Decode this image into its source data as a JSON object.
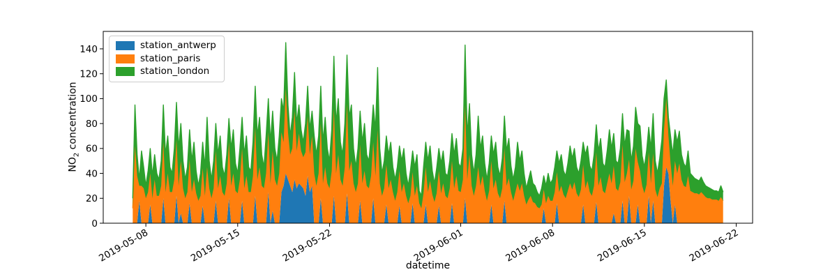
{
  "figure": {
    "kind": "matplotlib area plot",
    "background": "#ffffff"
  },
  "axes": {
    "xlabel": "datetime",
    "ylabel": "NO2 concentration",
    "ylabel_prefix": "NO",
    "ylabel_sub": "2",
    "ylabel_suffix": " concentration"
  },
  "chart_data": {
    "type": "area",
    "stacked": true,
    "title": "",
    "xlabel": "datetime",
    "ylabel": "NO2 concentration",
    "legend_position": "upper left",
    "grid": false,
    "x_start": "2019-05-07 00:00",
    "x_step_hours": 4,
    "xlim": [
      "2019-05-04 18:00",
      "2019-06-23 06:00"
    ],
    "ylim": [
      0,
      154
    ],
    "x_ticks": [
      "2019-05-08",
      "2019-05-15",
      "2019-05-22",
      "2019-06-01",
      "2019-06-08",
      "2019-06-15",
      "2019-06-22"
    ],
    "y_ticks": [
      0,
      20,
      40,
      60,
      80,
      100,
      120,
      140
    ],
    "series": [
      {
        "name": "station_antwerp",
        "color": "#1f77b4",
        "values": [
          0,
          0,
          0,
          18,
          0,
          0,
          0,
          0,
          15,
          0,
          0,
          0,
          0,
          0,
          20,
          0,
          0,
          0,
          0,
          0,
          22,
          0,
          8,
          0,
          0,
          0,
          16,
          0,
          0,
          0,
          0,
          0,
          14,
          0,
          0,
          0,
          0,
          0,
          18,
          0,
          0,
          0,
          0,
          0,
          20,
          0,
          0,
          0,
          0,
          0,
          18,
          0,
          0,
          0,
          0,
          0,
          22,
          0,
          0,
          0,
          0,
          0,
          25,
          0,
          10,
          0,
          0,
          0,
          25,
          30,
          40,
          35,
          30,
          25,
          35,
          28,
          32,
          30,
          28,
          22,
          38,
          25,
          30,
          0,
          0,
          0,
          20,
          0,
          0,
          0,
          0,
          0,
          22,
          0,
          0,
          0,
          0,
          0,
          24,
          0,
          0,
          0,
          0,
          0,
          18,
          0,
          0,
          0,
          0,
          0,
          20,
          0,
          0,
          0,
          0,
          0,
          15,
          0,
          0,
          0,
          0,
          0,
          14,
          0,
          0,
          0,
          0,
          0,
          16,
          0,
          0,
          0,
          0,
          0,
          15,
          0,
          0,
          0,
          0,
          0,
          14,
          0,
          0,
          0,
          0,
          0,
          16,
          0,
          0,
          0,
          0,
          0,
          20,
          0,
          0,
          0,
          0,
          0,
          0,
          0,
          0,
          0,
          0,
          0,
          15,
          0,
          0,
          0,
          0,
          0,
          18,
          0,
          0,
          0,
          0,
          0,
          0,
          0,
          0,
          0,
          0,
          0,
          0,
          0,
          0,
          0,
          0,
          0,
          12,
          0,
          0,
          0,
          0,
          0,
          16,
          0,
          0,
          0,
          0,
          0,
          0,
          0,
          0,
          0,
          0,
          0,
          15,
          0,
          0,
          0,
          0,
          0,
          17,
          0,
          0,
          0,
          0,
          0,
          0,
          0,
          8,
          0,
          0,
          0,
          18,
          0,
          0,
          22,
          0,
          0,
          0,
          15,
          0,
          0,
          0,
          0,
          22,
          0,
          18,
          0,
          0,
          0,
          0,
          30,
          45,
          40,
          18,
          0,
          15,
          0,
          0,
          0,
          0,
          0,
          0,
          0,
          0,
          0,
          0,
          0,
          0,
          0,
          0,
          0,
          0,
          0,
          0,
          0,
          0,
          0,
          0
        ]
      },
      {
        "name": "station_paris",
        "color": "#ff7f0e",
        "values": [
          12,
          62,
          38,
          12,
          30,
          28,
          20,
          25,
          25,
          20,
          35,
          22,
          22,
          30,
          45,
          25,
          40,
          25,
          25,
          35,
          45,
          30,
          42,
          28,
          20,
          25,
          35,
          25,
          35,
          24,
          18,
          22,
          30,
          22,
          45,
          28,
          20,
          28,
          40,
          28,
          38,
          25,
          22,
          32,
          45,
          30,
          40,
          26,
          24,
          35,
          42,
          28,
          38,
          25,
          25,
          38,
          55,
          35,
          45,
          30,
          28,
          40,
          48,
          32,
          48,
          35,
          30,
          40,
          48,
          35,
          68,
          38,
          25,
          35,
          55,
          30,
          40,
          28,
          25,
          35,
          48,
          30,
          40,
          40,
          30,
          40,
          60,
          32,
          45,
          32,
          28,
          42,
          70,
          40,
          55,
          35,
          30,
          45,
          72,
          42,
          50,
          32,
          25,
          32,
          45,
          32,
          42,
          30,
          28,
          38,
          45,
          38,
          75,
          32,
          22,
          28,
          32,
          28,
          35,
          25,
          18,
          25,
          28,
          25,
          32,
          22,
          16,
          22,
          25,
          22,
          30,
          16,
          12,
          24,
          30,
          25,
          34,
          23,
          17,
          24,
          28,
          24,
          32,
          22,
          20,
          28,
          34,
          28,
          38,
          26,
          25,
          35,
          75,
          35,
          55,
          30,
          22,
          30,
          45,
          30,
          38,
          26,
          18,
          26,
          35,
          28,
          35,
          24,
          20,
          28,
          42,
          30,
          36,
          25,
          18,
          25,
          32,
          26,
          32,
          22,
          15,
          19,
          22,
          17,
          16,
          13,
          12,
          15,
          15,
          16,
          22,
          18,
          18,
          25,
          25,
          25,
          30,
          23,
          20,
          26,
          32,
          27,
          33,
          24,
          21,
          27,
          32,
          28,
          34,
          25,
          22,
          30,
          40,
          30,
          37,
          26,
          24,
          32,
          40,
          32,
          38,
          28,
          26,
          33,
          45,
          33,
          40,
          29,
          27,
          34,
          60,
          34,
          42,
          30,
          24,
          31,
          35,
          32,
          38,
          27,
          21,
          28,
          32,
          45,
          55,
          30,
          30,
          30,
          35,
          40,
          48,
          35,
          30,
          29,
          38,
          26,
          25,
          24,
          24,
          23,
          25,
          23,
          21,
          20,
          20,
          19,
          19,
          19,
          18,
          21,
          18
        ]
      },
      {
        "name": "station_london",
        "color": "#2ca02c",
        "values": [
          8,
          33,
          17,
          5,
          28,
          17,
          10,
          17,
          20,
          18,
          20,
          18,
          13,
          20,
          30,
          30,
          30,
          20,
          15,
          25,
          30,
          30,
          30,
          22,
          15,
          20,
          24,
          25,
          30,
          18,
          12,
          18,
          21,
          23,
          40,
          22,
          15,
          22,
          22,
          27,
          32,
          20,
          16,
          23,
          19,
          30,
          35,
          22,
          16,
          25,
          25,
          27,
          32,
          20,
          17,
          27,
          33,
          35,
          40,
          25,
          17,
          30,
          27,
          33,
          32,
          25,
          20,
          30,
          27,
          25,
          37,
          22,
          15,
          25,
          31,
          22,
          23,
          17,
          12,
          23,
          24,
          20,
          20,
          30,
          25,
          30,
          30,
          33,
          40,
          28,
          22,
          33,
          42,
          40,
          45,
          30,
          25,
          35,
          39,
          43,
          45,
          28,
          20,
          28,
          27,
          33,
          38,
          25,
          22,
          32,
          30,
          37,
          50,
          28,
          18,
          22,
          23,
          27,
          30,
          20,
          17,
          20,
          20,
          25,
          28,
          18,
          14,
          20,
          17,
          23,
          25,
          10,
          10,
          21,
          20,
          25,
          28,
          19,
          15,
          20,
          18,
          24,
          26,
          18,
          18,
          22,
          22,
          27,
          30,
          22,
          20,
          25,
          48,
          35,
          41,
          25,
          18,
          25,
          41,
          30,
          32,
          22,
          17,
          22,
          20,
          27,
          30,
          21,
          18,
          24,
          26,
          28,
          32,
          21,
          17,
          20,
          33,
          24,
          26,
          18,
          13,
          16,
          20,
          15,
          14,
          12,
          10,
          13,
          11,
          14,
          18,
          14,
          17,
          20,
          17,
          23,
          25,
          19,
          18,
          22,
          30,
          25,
          27,
          21,
          19,
          23,
          18,
          27,
          28,
          21,
          20,
          25,
          22,
          28,
          31,
          22,
          21,
          26,
          35,
          28,
          26,
          22,
          22,
          27,
          25,
          29,
          35,
          23,
          23,
          28,
          33,
          31,
          36,
          24,
          21,
          27,
          20,
          28,
          32,
          23,
          19,
          24,
          35,
          25,
          15,
          15,
          22,
          25,
          25,
          25,
          26,
          20,
          18,
          16,
          20,
          14,
          13,
          12,
          11,
          11,
          12,
          10,
          9,
          9,
          8,
          8,
          7,
          7,
          7,
          9,
          7
        ]
      }
    ]
  }
}
